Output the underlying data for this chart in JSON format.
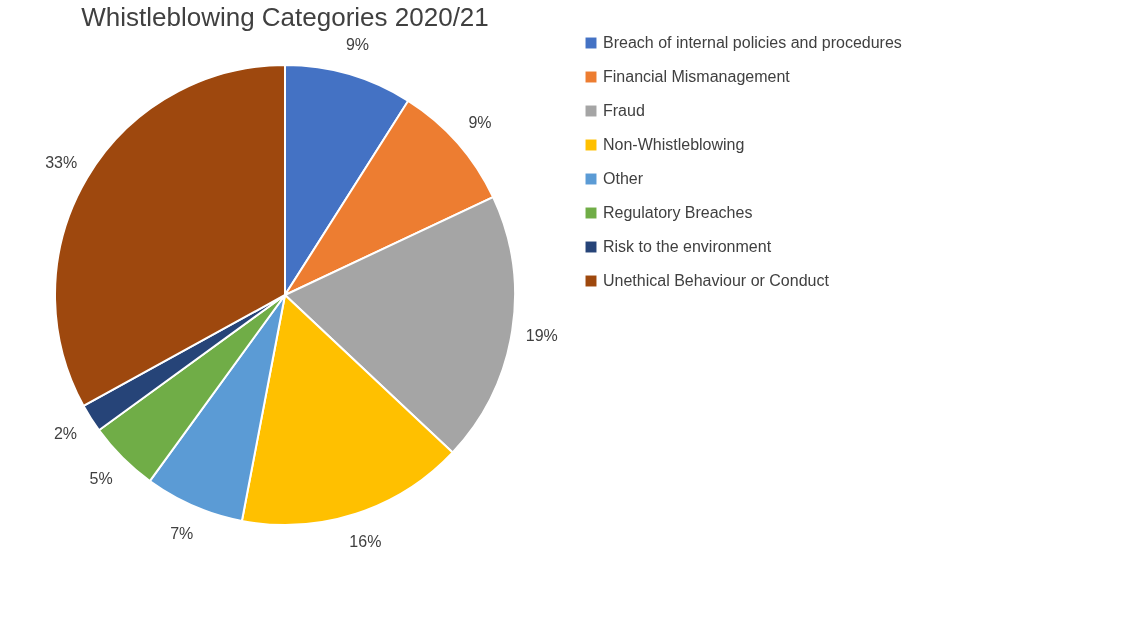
{
  "chart_data": {
    "type": "pie",
    "title": "Whistleblowing Categories 2020/21",
    "categories": [
      "Breach of internal policies and procedures",
      "Financial Mismanagement",
      "Fraud",
      "Non-Whistleblowing",
      "Other",
      "Regulatory Breaches",
      "Risk to the environment",
      "Unethical Behaviour or Conduct"
    ],
    "values": [
      9,
      9,
      19,
      16,
      7,
      5,
      2,
      33
    ],
    "value_labels": [
      "9%",
      "9%",
      "19%",
      "16%",
      "7%",
      "5%",
      "2%",
      "33%"
    ],
    "colors": [
      "#4472c4",
      "#ed7d31",
      "#a5a5a5",
      "#ffc000",
      "#5b9bd5",
      "#70ad47",
      "#264478",
      "#9e480e"
    ],
    "legend": "right"
  }
}
